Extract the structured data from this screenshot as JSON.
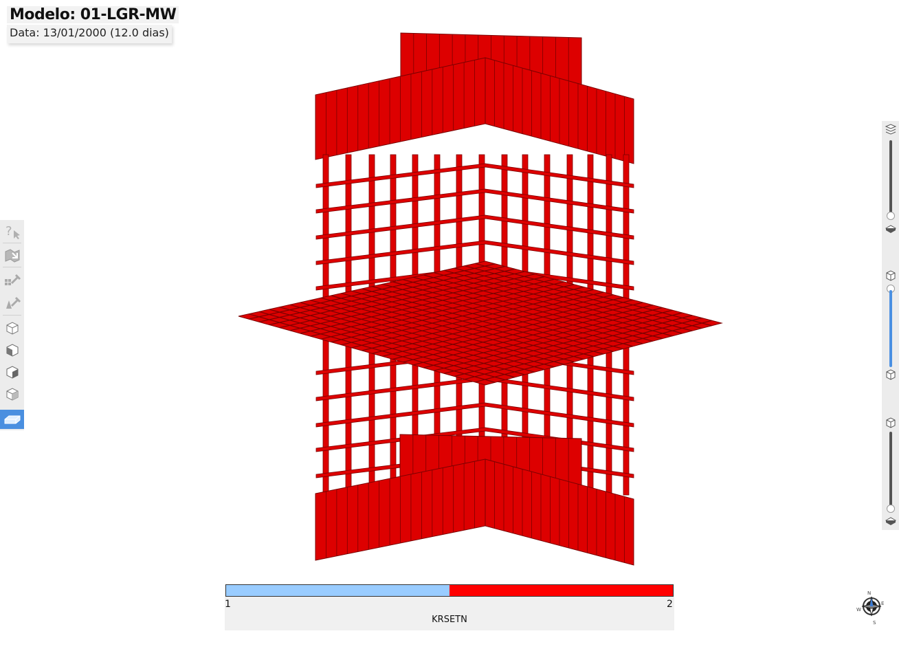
{
  "header": {
    "model_title": "Modelo: 01-LGR-MW",
    "date_text": "Data: 13/01/2000 (12.0 dias)"
  },
  "left_toolbar": {
    "items": [
      {
        "icon": "help-pointer-icon",
        "active": false
      },
      {
        "icon": "map-view-icon",
        "active": false
      },
      {
        "icon": "grid-probe-icon",
        "active": false
      },
      {
        "icon": "well-probe-icon",
        "active": false
      },
      {
        "icon": "view-cube-top-icon",
        "active": false
      },
      {
        "icon": "view-cube-front-icon",
        "active": false
      },
      {
        "icon": "view-cube-side-icon",
        "active": false
      },
      {
        "icon": "view-cube-iso-icon",
        "active": false
      },
      {
        "icon": "layer-slab-icon",
        "active": true
      }
    ]
  },
  "right_panel": {
    "sliders": [
      {
        "name": "layers-slider",
        "value": 1.0
      },
      {
        "name": "section-slider",
        "value": 0.0
      },
      {
        "name": "depth-slider",
        "value": 1.0
      }
    ]
  },
  "scene": {
    "property_color_high": "#dd0000",
    "property_color_low": "#99ccff"
  },
  "legend": {
    "property": "KRSETN",
    "min_label": "1",
    "max_label": "2",
    "colors": [
      "#99ccff",
      "#ff0000"
    ]
  },
  "compass": {
    "icon": "compass-rose-icon"
  }
}
